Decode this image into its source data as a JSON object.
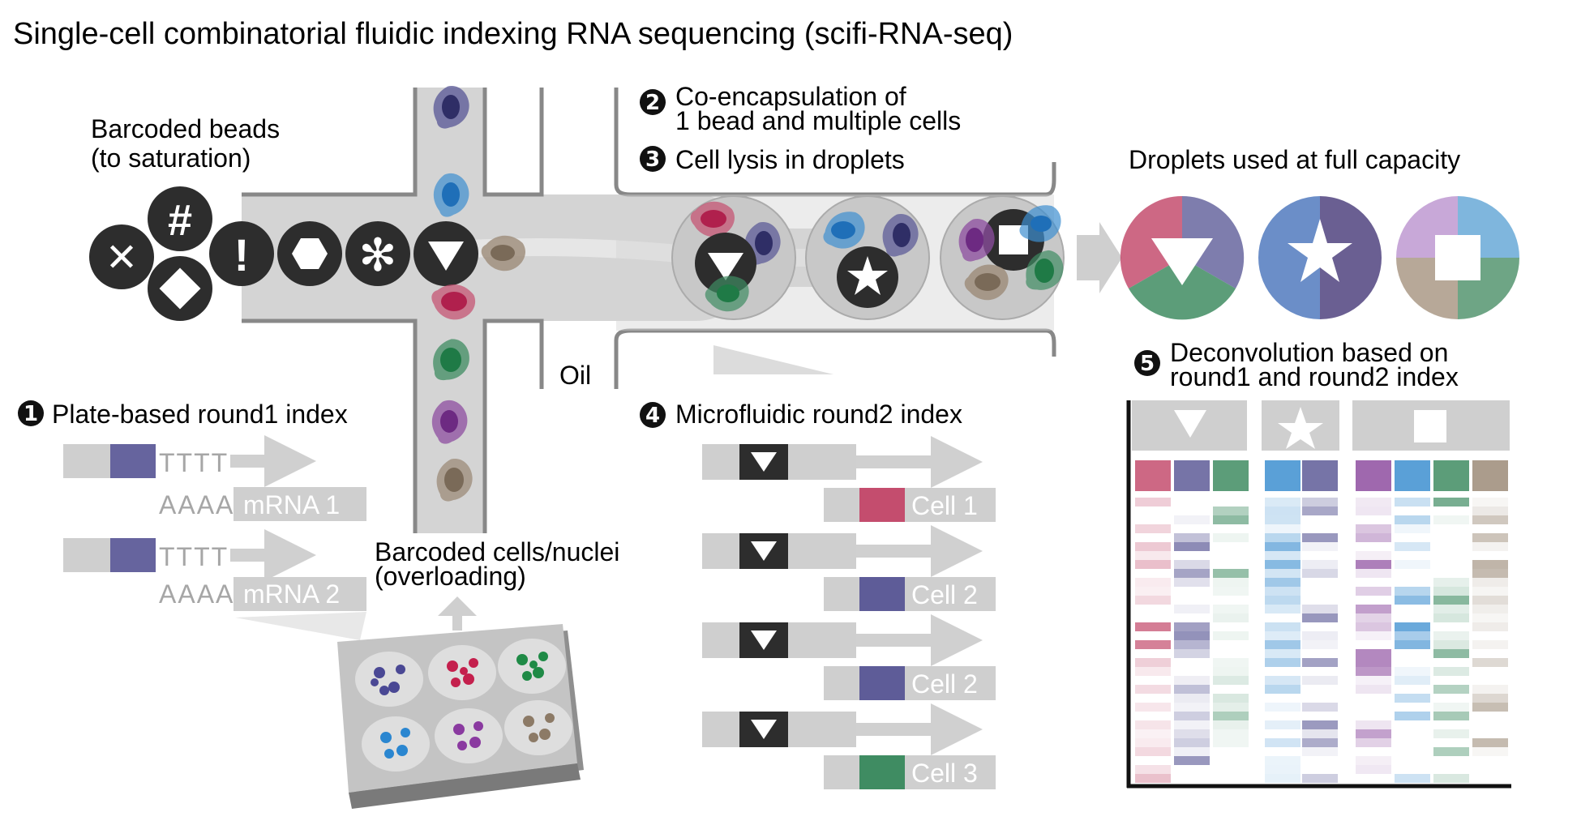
{
  "title": "Single-cell combinatorial fluidic indexing RNA sequencing (scifi-RNA-seq)",
  "labels": {
    "beads_line1": "Barcoded beads",
    "beads_line2": "(to saturation)",
    "step2_line1": "Co-encapsulation of",
    "step2_line2": "1 bead and multiple cells",
    "step3": "Cell lysis in droplets",
    "droplets_full": "Droplets used at full capacity",
    "oil": "Oil",
    "step1": "Plate-based round1 index",
    "step4": "Microfluidic round2 index",
    "step5_line1": "Deconvolution based on",
    "step5_line2": "round1 and round2 index",
    "cells_line1": "Barcoded cells/nuclei",
    "cells_line2": "(overloading)"
  },
  "step_numbers": {
    "s1": "1",
    "s2": "2",
    "s3": "3",
    "s4": "4",
    "s5": "5"
  },
  "bead_symbols": {
    "cross": "✕",
    "hash": "#",
    "bang": "!",
    "asterisk": "✻"
  },
  "round1": {
    "primer_text": "TTTT",
    "polyA_text": "AAAA",
    "mrnas": [
      "mRNA 1",
      "mRNA 2"
    ]
  },
  "round2": {
    "cells": [
      {
        "label": "Cell 1",
        "color": "#c44d6e"
      },
      {
        "label": "Cell 2",
        "color": "#5e5c98"
      },
      {
        "label": "Cell 2",
        "color": "#5e5c98"
      },
      {
        "label": "Cell 3",
        "color": "#3f8c62"
      }
    ]
  },
  "colors": {
    "red": "#c44d6e",
    "navy": "#5e5c98",
    "green": "#3f8c62",
    "blue": "#3d8fd0",
    "purple": "#8e4ea0",
    "tan": "#9c8b78",
    "channel": "#d4d4d4",
    "dark": "#2d2d2d",
    "index_blue": "#66649e"
  }
}
